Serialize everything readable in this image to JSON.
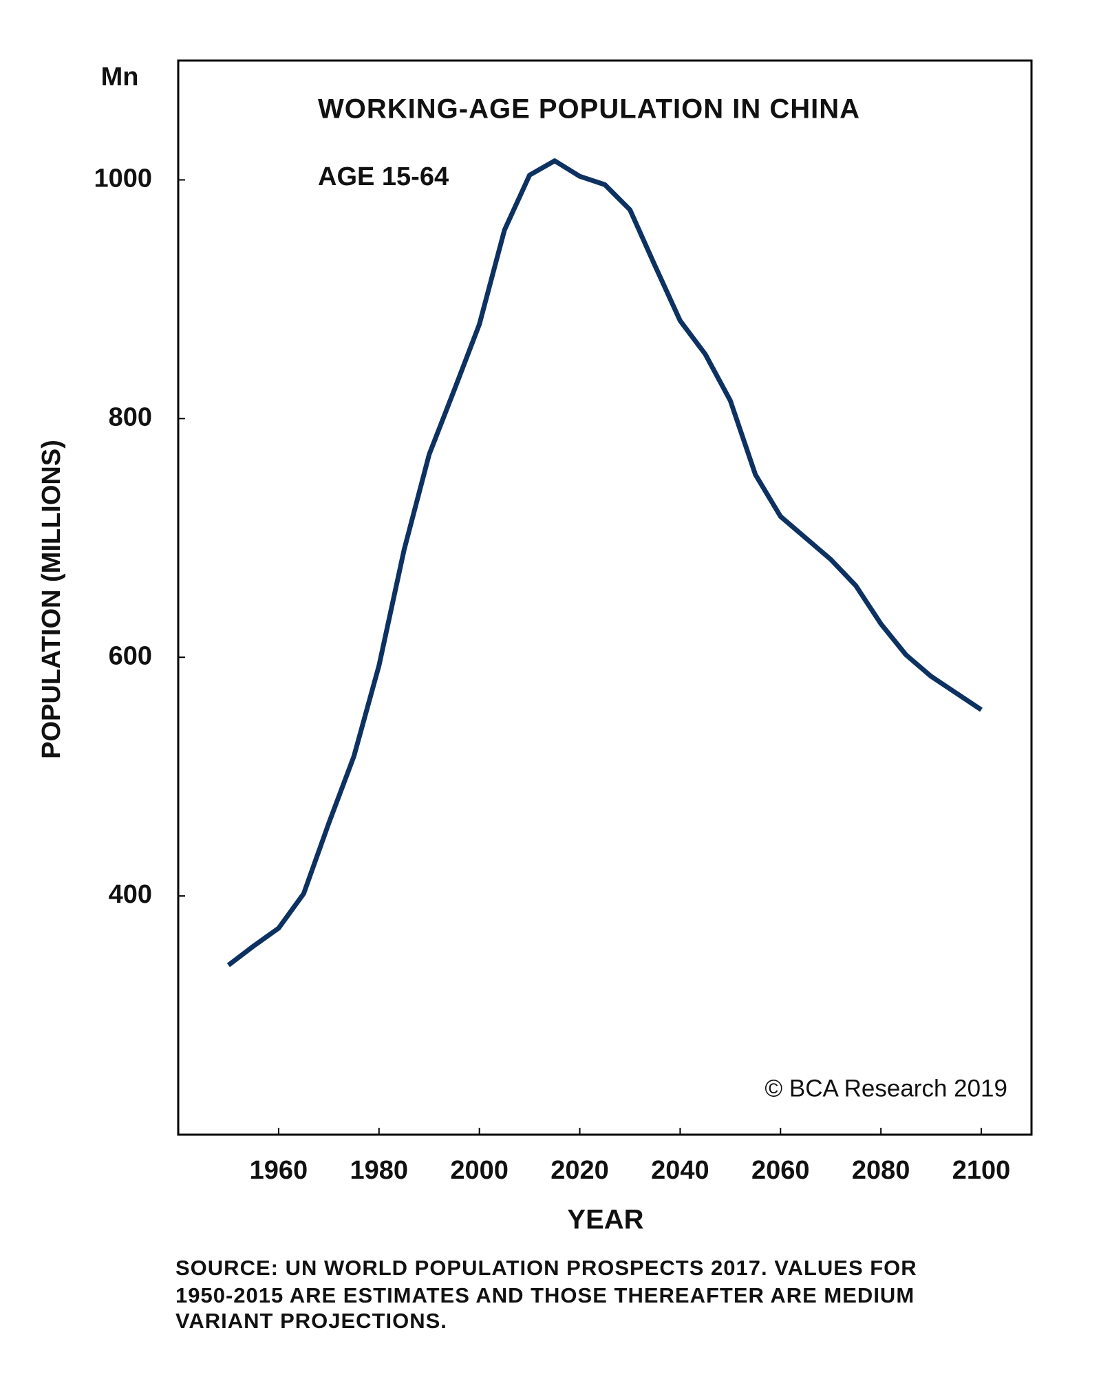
{
  "chart_data": {
    "type": "line",
    "title": "WORKING-AGE POPULATION IN CHINA",
    "subtitle": "AGE 15-64",
    "unit_label": "Mn",
    "y_label": "POPULATION (MILLIONS)",
    "x_label": "YEAR",
    "credit": "© BCA Research 2019",
    "source": [
      "SOURCE: UN WORLD POPULATION PROSPECTS 2017. VALUES FOR",
      "1950-2015 ARE ESTIMATES AND THOSE THEREAFTER ARE MEDIUM",
      "VARIANT PROJECTIONS."
    ],
    "x": [
      1950,
      1955,
      1960,
      1965,
      1970,
      1975,
      1980,
      1985,
      1990,
      1995,
      2000,
      2005,
      2010,
      2015,
      2020,
      2025,
      2030,
      2035,
      2040,
      2045,
      2050,
      2055,
      2060,
      2065,
      2070,
      2075,
      2080,
      2085,
      2090,
      2095,
      2100
    ],
    "series": [
      {
        "name": "AGE 15-64",
        "color": "#0d3161",
        "values": [
          342,
          358,
          373,
          402,
          461,
          517,
          593,
          690,
          770,
          824,
          879,
          958,
          1004,
          1016,
          1003,
          996,
          975,
          928,
          882,
          854,
          815,
          753,
          718,
          700,
          682,
          660,
          628,
          602,
          584,
          570,
          556
        ]
      }
    ],
    "xlim": [
      1940,
      2110
    ],
    "xticks": [
      1960,
      1980,
      2000,
      2020,
      2040,
      2060,
      2080,
      2100
    ],
    "ylim": [
      200,
      1100
    ],
    "yticks": [
      400,
      600,
      800,
      1000
    ],
    "grid": false
  }
}
